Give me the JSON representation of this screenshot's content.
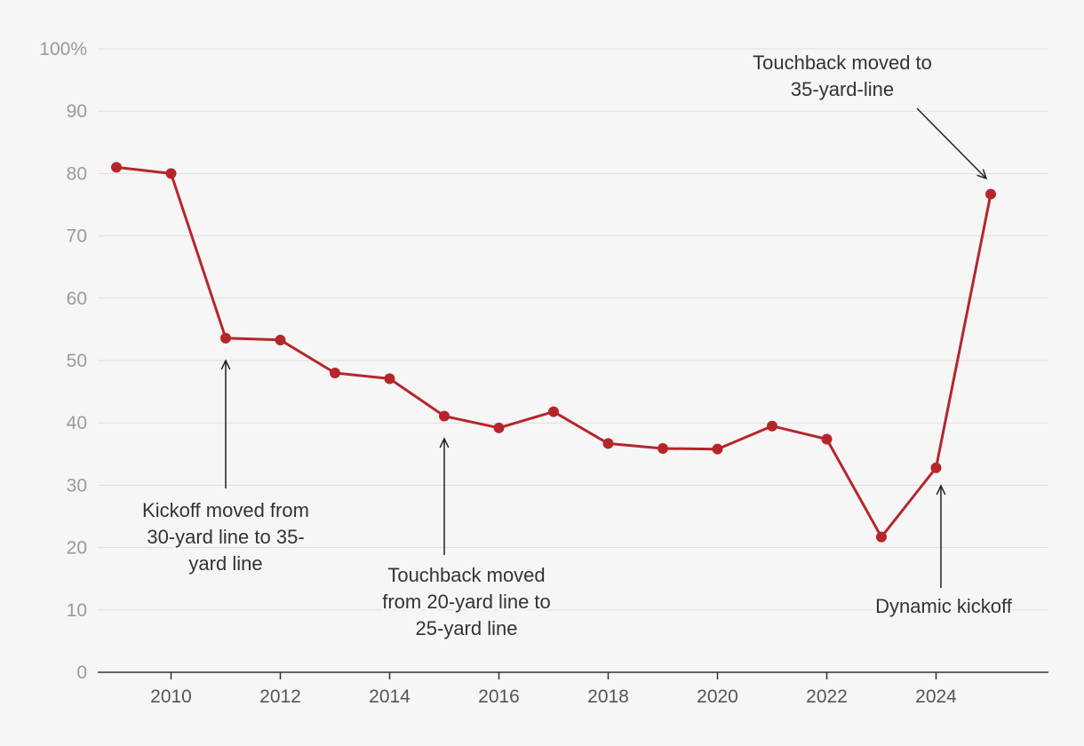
{
  "chart_data": {
    "type": "line",
    "title": "",
    "xlabel": "",
    "ylabel": "",
    "xlim": [
      2009,
      2025
    ],
    "ylim": [
      0,
      100
    ],
    "grid": true,
    "x_ticks": [
      {
        "value": 2010,
        "label": "2010"
      },
      {
        "value": 2012,
        "label": "2012"
      },
      {
        "value": 2014,
        "label": "2014"
      },
      {
        "value": 2016,
        "label": "2016"
      },
      {
        "value": 2018,
        "label": "2018"
      },
      {
        "value": 2020,
        "label": "2020"
      },
      {
        "value": 2022,
        "label": "2022"
      },
      {
        "value": 2024,
        "label": "2024"
      }
    ],
    "y_ticks": [
      {
        "value": 0,
        "label": "0"
      },
      {
        "value": 10,
        "label": "10"
      },
      {
        "value": 20,
        "label": "20"
      },
      {
        "value": 30,
        "label": "30"
      },
      {
        "value": 40,
        "label": "40"
      },
      {
        "value": 50,
        "label": "50"
      },
      {
        "value": 60,
        "label": "60"
      },
      {
        "value": 70,
        "label": "70"
      },
      {
        "value": 80,
        "label": "80"
      },
      {
        "value": 90,
        "label": "90"
      },
      {
        "value": 100,
        "label": "100%"
      }
    ],
    "series": [
      {
        "color": "#b5262b",
        "x": [
          2009,
          2010,
          2011,
          2012,
          2013,
          2014,
          2015,
          2016,
          2017,
          2018,
          2019,
          2020,
          2021,
          2022,
          2023,
          2024,
          2025
        ],
        "values": [
          81.0,
          80.0,
          53.6,
          53.3,
          48.0,
          47.1,
          41.1,
          39.2,
          41.8,
          36.7,
          35.9,
          35.8,
          39.5,
          37.4,
          21.7,
          32.8,
          76.7
        ]
      }
    ],
    "annotations": [
      {
        "lines": [
          "Kickoff moved from",
          "30-yard line to 35-",
          "yard line"
        ],
        "x": 2011,
        "y": 53.6
      },
      {
        "lines": [
          "Touchback moved",
          "from 20-yard line to",
          "25-yard line"
        ],
        "x": 2015,
        "y": 41.1
      },
      {
        "lines": [
          "Dynamic kickoff"
        ],
        "x": 2024,
        "y": 32.8
      },
      {
        "lines": [
          "Touchback moved to",
          "35-yard-line"
        ],
        "x": 2025,
        "y": 76.7
      }
    ]
  }
}
